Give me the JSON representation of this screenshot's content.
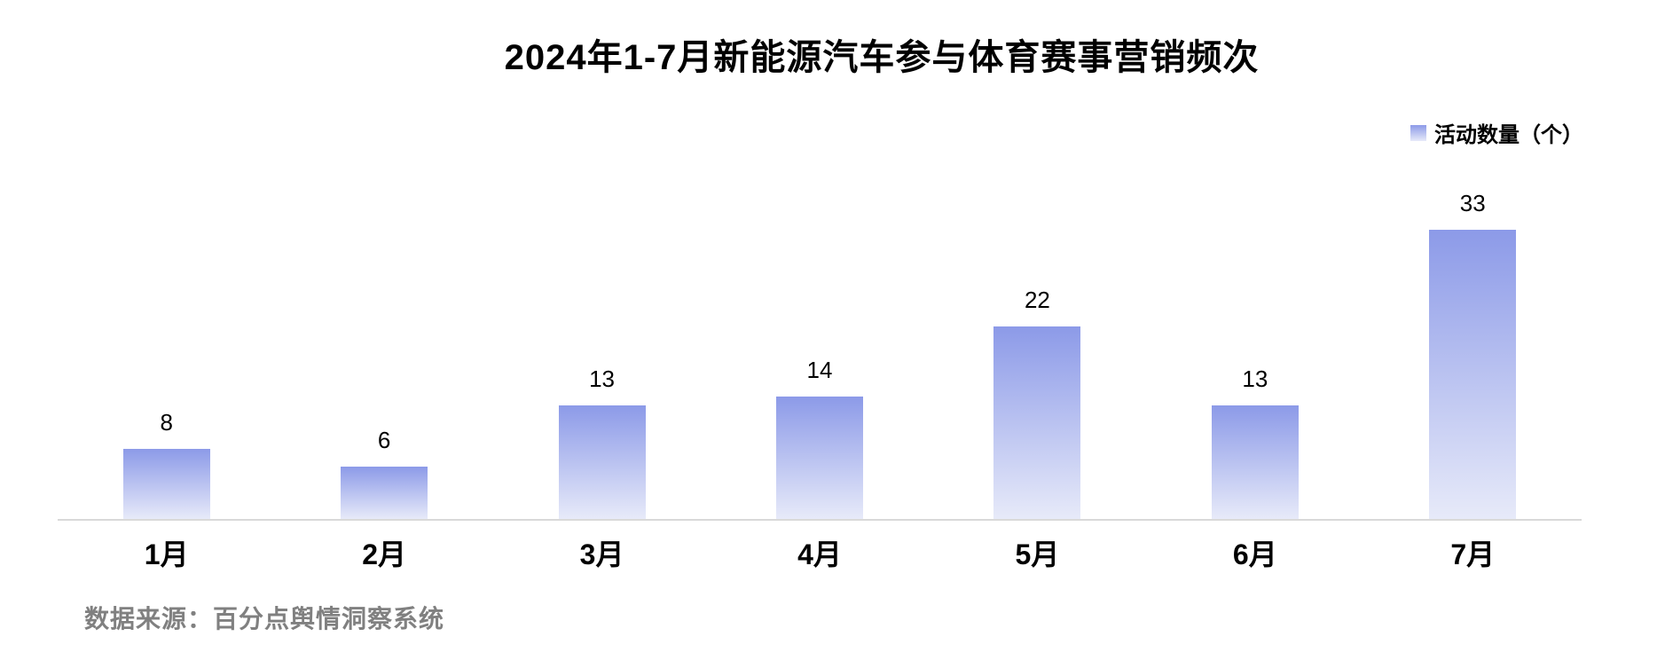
{
  "title": "2024年1-7月新能源汽车参与体育赛事营销频次",
  "legend": {
    "label": "活动数量（个）"
  },
  "source_note": "数据来源：百分点舆情洞察系统",
  "colors": {
    "bar_gradient_top": "#8C9AE8",
    "bar_gradient_bottom": "#E7EAF9",
    "axis_line": "#D9D9D9",
    "title_text": "#000000",
    "value_label_text": "#000000",
    "source_text": "#808080"
  },
  "chart_data": {
    "type": "bar",
    "title": "2024年1-7月新能源汽车参与体育赛事营销频次",
    "categories": [
      "1月",
      "2月",
      "3月",
      "4月",
      "5月",
      "6月",
      "7月"
    ],
    "series": [
      {
        "name": "活动数量（个）",
        "values": [
          8,
          6,
          13,
          14,
          22,
          13,
          33
        ]
      }
    ],
    "xlabel": "",
    "ylabel": "",
    "ylim": [
      0,
      35
    ],
    "grid": false,
    "legend_position": "top-right",
    "data_labels": true
  }
}
